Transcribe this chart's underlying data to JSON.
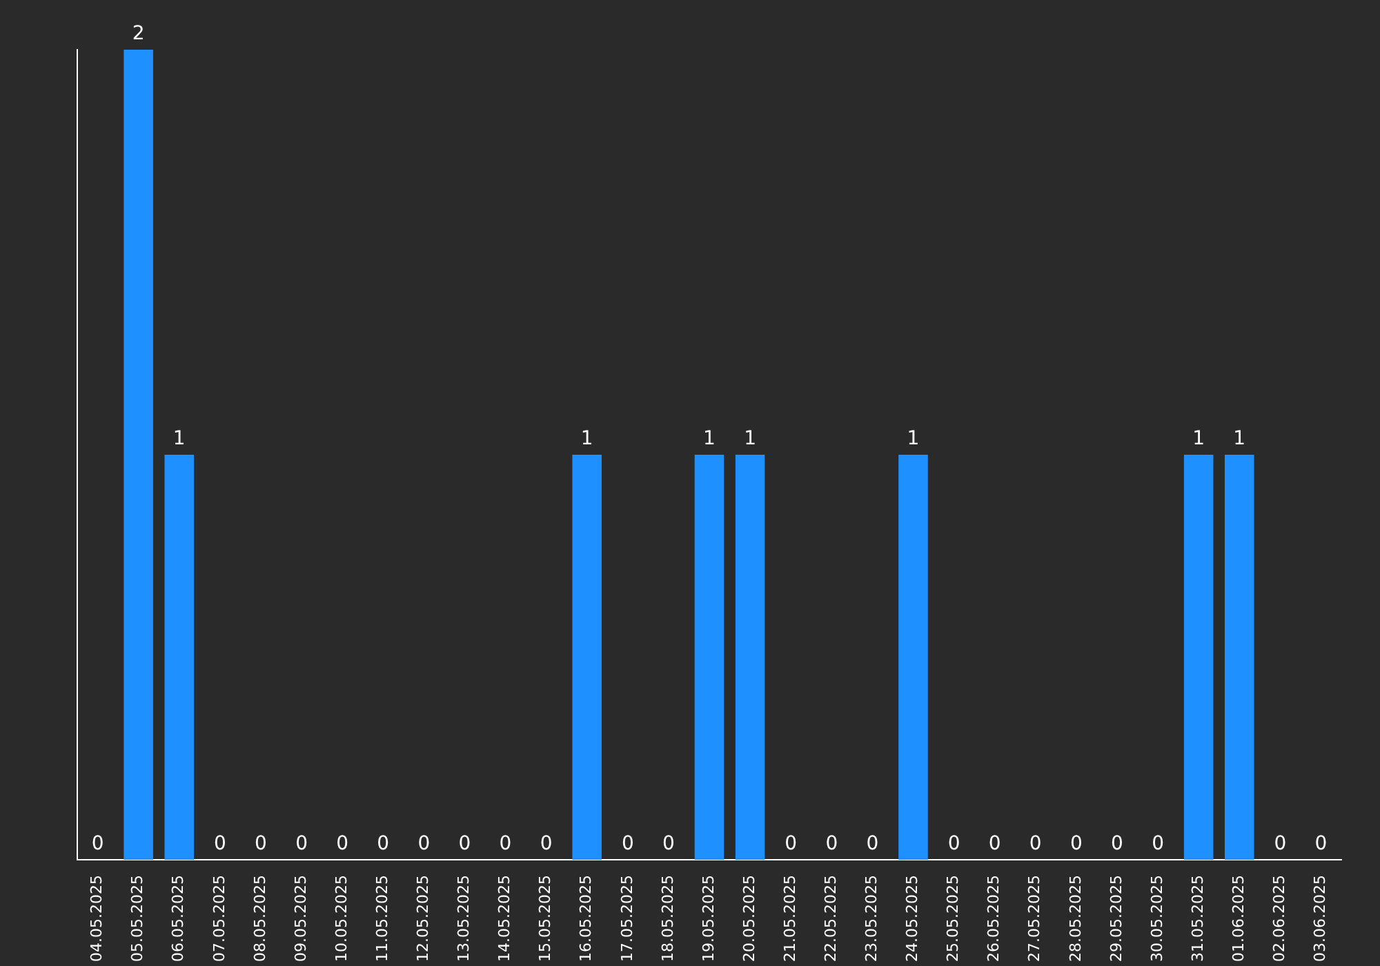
{
  "chart_data": {
    "type": "bar",
    "categories": [
      "04.05.2025",
      "05.05.2025",
      "06.05.2025",
      "07.05.2025",
      "08.05.2025",
      "09.05.2025",
      "10.05.2025",
      "11.05.2025",
      "12.05.2025",
      "13.05.2025",
      "14.05.2025",
      "15.05.2025",
      "16.05.2025",
      "17.05.2025",
      "18.05.2025",
      "19.05.2025",
      "20.05.2025",
      "21.05.2025",
      "22.05.2025",
      "23.05.2025",
      "24.05.2025",
      "25.05.2025",
      "26.05.2025",
      "27.05.2025",
      "28.05.2025",
      "29.05.2025",
      "30.05.2025",
      "31.05.2025",
      "01.06.2025",
      "02.06.2025",
      "03.06.2025"
    ],
    "values": [
      0,
      2,
      1,
      0,
      0,
      0,
      0,
      0,
      0,
      0,
      0,
      0,
      1,
      0,
      0,
      1,
      1,
      0,
      0,
      0,
      1,
      0,
      0,
      0,
      0,
      0,
      0,
      1,
      1,
      0,
      0
    ],
    "color": "#1e90ff",
    "ylim": [
      0,
      2
    ],
    "data_labels": true,
    "tick_labels": "x"
  }
}
